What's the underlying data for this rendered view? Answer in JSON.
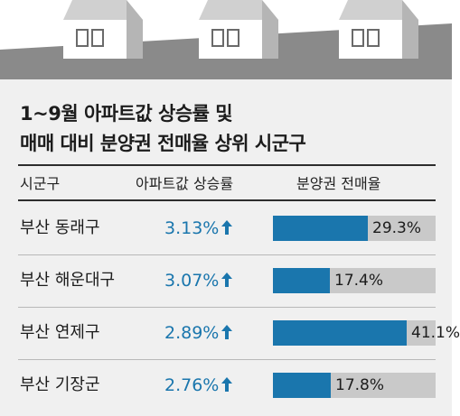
{
  "title_lines": [
    "1~9월 아파트값 상승률 및",
    "매매 대비 분양권 전매율 상위 시군구"
  ],
  "headers": {
    "region": "시군구",
    "rise": "아파트값 상승률",
    "resale": "분양권 전매율"
  },
  "colors": {
    "accent": "#1a76ad",
    "bar_track": "#c9c9c9",
    "panel": "#f0f0f0",
    "roof": "#8a8a8a"
  },
  "chart_data": {
    "type": "table",
    "columns": [
      "시군구",
      "아파트값 상승률",
      "분양권 전매율"
    ],
    "bar_max": 50,
    "rows": [
      {
        "region": "부산 동래구",
        "rise": "3.13%",
        "rise_value": 3.13,
        "resale": "29.3%",
        "resale_value": 29.3
      },
      {
        "region": "부산 해운대구",
        "rise": "3.07%",
        "rise_value": 3.07,
        "resale": "17.4%",
        "resale_value": 17.4
      },
      {
        "region": "부산 연제구",
        "rise": "2.89%",
        "rise_value": 2.89,
        "resale": "41.1%",
        "resale_value": 41.1
      },
      {
        "region": "부산 기장군",
        "rise": "2.76%",
        "rise_value": 2.76,
        "resale": "17.8%",
        "resale_value": 17.8
      }
    ]
  }
}
